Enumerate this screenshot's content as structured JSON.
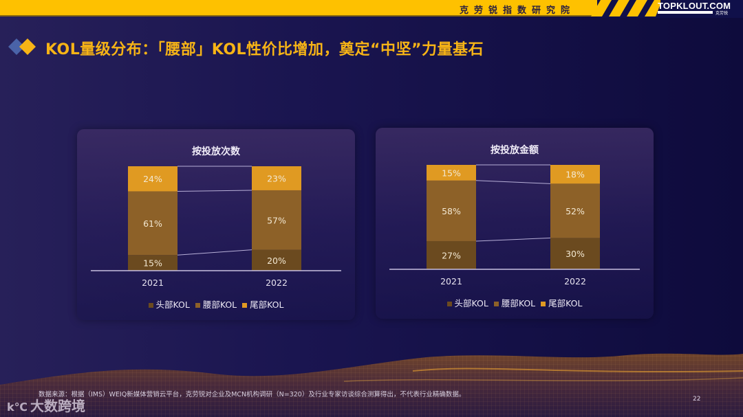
{
  "header": {
    "institute": "克劳锐指数研究院",
    "brand": "TOPKLOUT.COM",
    "brand_sub": "克劳锐",
    "accent": "#fec100"
  },
  "page": {
    "title": "KOL量级分布：「腰部」KOL性价比增加，奠定“中坚”力量基石",
    "title_color": "#f7b416",
    "page_number": "22"
  },
  "footer": {
    "source": "数据来源：根据（IMS）WEIQ新媒体营销云平台，克劳锐对企业及MCN机构调研（N=320）及行业专家访谈综合测算得出，不代表行业精确数据。",
    "logo_text": "大数跨境",
    "logo_mark": "k℃"
  },
  "legend": [
    {
      "label": "头部KOL",
      "color": "#6b4a1f"
    },
    {
      "label": "腰部KOL",
      "color": "#8d6128"
    },
    {
      "label": "尾部KOL",
      "color": "#e09a22"
    }
  ],
  "chart_data": [
    {
      "type": "bar",
      "stacked": true,
      "normalized": true,
      "title": "按投放次数",
      "categories": [
        "2021",
        "2022"
      ],
      "series": [
        {
          "name": "头部KOL",
          "values": [
            15,
            20
          ],
          "labels": [
            "15%",
            "20%"
          ]
        },
        {
          "name": "腰部KOL",
          "values": [
            61,
            57
          ],
          "labels": [
            "61%",
            "57%"
          ]
        },
        {
          "name": "尾部KOL",
          "values": [
            24,
            23
          ],
          "labels": [
            "24%",
            "23%"
          ]
        }
      ],
      "xlabel": "",
      "ylabel": "",
      "ylim": [
        0,
        100
      ],
      "grid": false,
      "legend_position": "bottom",
      "series_lines": true
    },
    {
      "type": "bar",
      "stacked": true,
      "normalized": true,
      "title": "按投放金额",
      "categories": [
        "2021",
        "2022"
      ],
      "series": [
        {
          "name": "头部KOL",
          "values": [
            27,
            30
          ],
          "labels": [
            "27%",
            "30%"
          ]
        },
        {
          "name": "腰部KOL",
          "values": [
            58,
            52
          ],
          "labels": [
            "58%",
            "52%"
          ]
        },
        {
          "name": "尾部KOL",
          "values": [
            15,
            18
          ],
          "labels": [
            "15%",
            "18%"
          ]
        }
      ],
      "xlabel": "",
      "ylabel": "",
      "ylim": [
        0,
        100
      ],
      "grid": false,
      "legend_position": "bottom",
      "series_lines": true
    }
  ]
}
